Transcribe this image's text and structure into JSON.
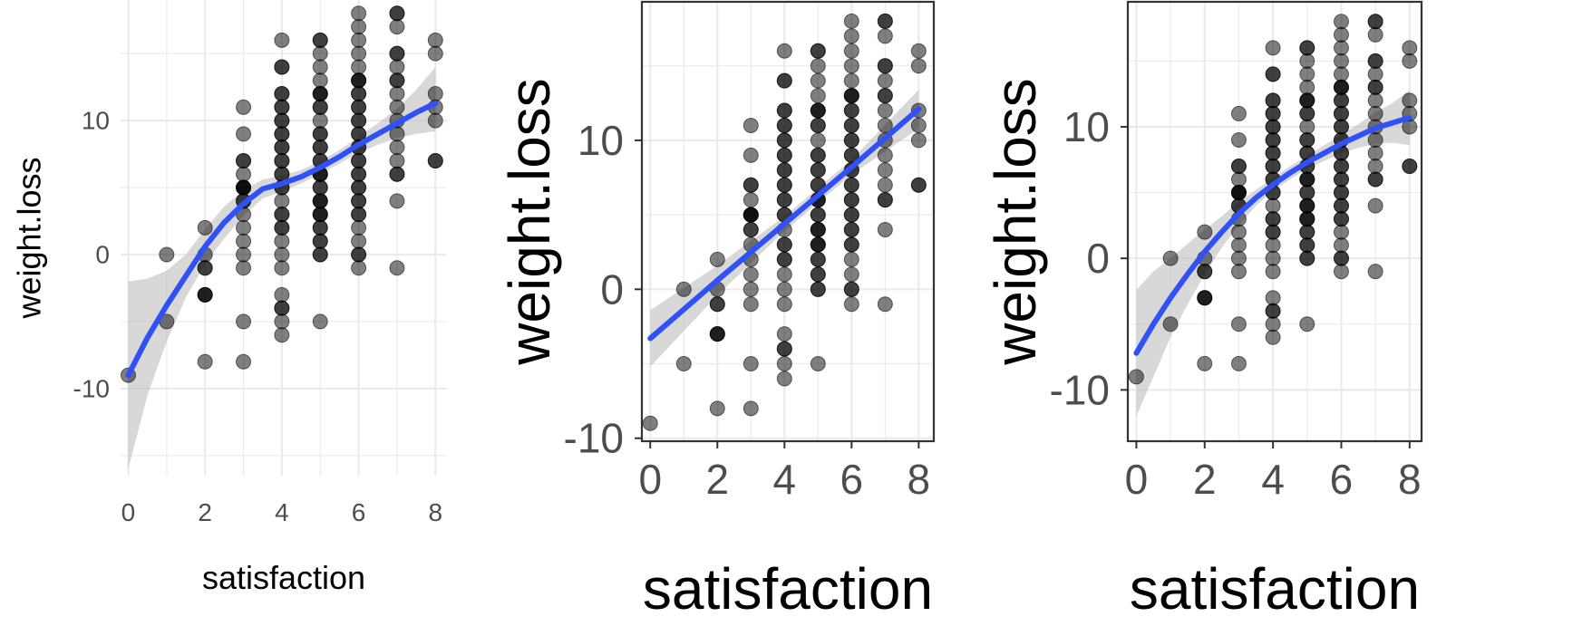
{
  "chart_data": [
    {
      "type": "scatter",
      "panel": "left",
      "theme": "minimal",
      "smoother": "loess",
      "xlabel": "satisfaction",
      "ylabel": "weight.loss",
      "xticks": [
        "0",
        "2",
        "4",
        "6",
        "8"
      ],
      "yticks": [
        "-10",
        "0",
        "10"
      ],
      "xlim": [
        -0.2,
        8.3
      ],
      "ylim": [
        -16.5,
        19
      ],
      "grid": true,
      "panel_border": false,
      "point_color": "#000000",
      "line_color": "#3050F8",
      "band_color": "#BEBEBE",
      "fit": {
        "x": [
          0,
          0.5,
          1,
          1.5,
          2,
          2.5,
          3,
          3.5,
          4,
          4.5,
          5,
          5.5,
          6,
          6.5,
          7,
          7.5,
          8
        ],
        "y": [
          -9,
          -6.2,
          -3.8,
          -1.6,
          0.6,
          2.4,
          3.8,
          4.9,
          5.3,
          5.8,
          6.5,
          7.3,
          8.2,
          9.0,
          9.8,
          10.6,
          11.3
        ],
        "lower": [
          -16,
          -10.5,
          -6.5,
          -3.2,
          -0.7,
          1.2,
          2.9,
          4.2,
          4.7,
          5.3,
          6.0,
          6.8,
          7.6,
          8.2,
          8.7,
          9.0,
          9.2
        ],
        "upper": [
          -2,
          -1.8,
          -1.2,
          0.0,
          1.9,
          3.6,
          4.8,
          5.6,
          5.9,
          6.3,
          7.0,
          7.8,
          8.8,
          9.8,
          10.9,
          12.3,
          14
        ]
      }
    },
    {
      "type": "scatter",
      "panel": "middle",
      "theme": "bw",
      "smoother": "lm",
      "xlabel": "satisfaction",
      "ylabel": "weight.loss",
      "xticks": [
        "0",
        "2",
        "4",
        "6",
        "8"
      ],
      "yticks": [
        "-10",
        "0",
        "10"
      ],
      "xlim": [
        -0.25,
        8.45
      ],
      "ylim": [
        -10.2,
        19.3
      ],
      "grid": true,
      "panel_border": true,
      "point_color": "#000000",
      "line_color": "#3050F8",
      "band_color": "#BEBEBE",
      "fit": {
        "x": [
          0,
          2,
          4,
          6,
          8
        ],
        "y": [
          -3.3,
          0.6,
          4.4,
          8.2,
          12.1
        ],
        "lower": [
          -5.2,
          -0.4,
          3.9,
          7.7,
          10.8
        ],
        "upper": [
          -1.4,
          1.6,
          4.9,
          8.7,
          13.4
        ]
      }
    },
    {
      "type": "scatter",
      "panel": "right",
      "theme": "bw",
      "smoother": "quadratic",
      "xlabel": "satisfaction",
      "ylabel": "weight.loss",
      "xticks": [
        "0",
        "2",
        "4",
        "6",
        "8"
      ],
      "yticks": [
        "-10",
        "0",
        "10"
      ],
      "xlim": [
        -0.25,
        8.35
      ],
      "ylim": [
        -13.9,
        19.5
      ],
      "grid": true,
      "panel_border": true,
      "point_color": "#000000",
      "line_color": "#3050F8",
      "band_color": "#BEBEBE",
      "fit": {
        "x": [
          0,
          0.5,
          1,
          1.5,
          2,
          2.5,
          3,
          3.5,
          4,
          4.5,
          5,
          5.5,
          6,
          6.5,
          7,
          7.5,
          8
        ],
        "y": [
          -7.2,
          -5.0,
          -3.0,
          -1.2,
          0.5,
          2.0,
          3.4,
          4.6,
          5.6,
          6.5,
          7.3,
          8.0,
          8.7,
          9.3,
          9.9,
          10.3,
          10.7
        ],
        "lower": [
          -12,
          -9.0,
          -6.0,
          -3.5,
          -1.2,
          0.8,
          2.5,
          4.0,
          5.1,
          6.0,
          6.8,
          7.4,
          8.0,
          8.4,
          8.7,
          8.8,
          8.6
        ],
        "upper": [
          -2.4,
          -1.0,
          0.0,
          1.1,
          2.2,
          3.2,
          4.3,
          5.2,
          6.1,
          7.0,
          7.8,
          8.6,
          9.4,
          10.2,
          11.1,
          11.8,
          12.8
        ]
      }
    }
  ],
  "scatter_points": {
    "note_units": "satisfaction, weight.loss",
    "x": [
      0,
      1,
      1,
      2,
      2,
      2,
      2,
      2,
      2,
      2,
      2,
      3,
      3,
      3,
      3,
      3,
      3,
      3,
      3,
      3,
      3,
      3,
      3,
      3,
      3,
      3,
      3,
      3,
      3,
      4,
      4,
      4,
      4,
      4,
      4,
      4,
      4,
      4,
      4,
      4,
      4,
      4,
      4,
      4,
      4,
      4,
      4,
      4,
      4,
      4,
      4,
      4,
      4,
      4,
      4,
      4,
      4,
      4,
      4,
      4,
      4,
      5,
      5,
      5,
      5,
      5,
      5,
      5,
      5,
      5,
      5,
      5,
      5,
      5,
      5,
      5,
      5,
      5,
      5,
      5,
      5,
      5,
      5,
      5,
      5,
      5,
      5,
      5,
      5,
      5,
      5,
      5,
      5,
      5,
      5,
      5,
      6,
      6,
      6,
      6,
      6,
      6,
      6,
      6,
      6,
      6,
      6,
      6,
      6,
      6,
      6,
      6,
      6,
      6,
      6,
      6,
      6,
      6,
      6,
      6,
      6,
      6,
      6,
      6,
      6,
      6,
      6,
      6,
      6,
      7,
      7,
      7,
      7,
      7,
      7,
      7,
      7,
      7,
      7,
      7,
      7,
      7,
      7,
      7,
      7,
      7,
      7,
      8,
      8,
      8,
      8,
      8,
      8,
      8
    ],
    "y": [
      -9,
      0,
      -5,
      2,
      0,
      -1,
      -3,
      -3,
      -8,
      -1,
      -3,
      11,
      9,
      7,
      7,
      5,
      5,
      5,
      4,
      3,
      2,
      1,
      0,
      -1,
      -5,
      -8,
      6,
      4,
      5,
      16,
      14,
      14,
      12,
      12,
      11,
      11,
      10,
      9,
      9,
      8,
      7,
      7,
      6,
      6,
      5,
      5,
      4,
      3,
      3,
      2,
      1,
      0,
      -1,
      -3,
      -4,
      -4,
      -5,
      -6,
      10,
      8,
      2,
      16,
      16,
      15,
      14,
      13,
      12,
      12,
      11,
      10,
      9,
      8,
      8,
      7,
      6,
      6,
      5,
      5,
      4,
      4,
      3,
      3,
      3,
      2,
      2,
      1,
      1,
      0,
      -5,
      11,
      7,
      9,
      12,
      4,
      0,
      6,
      18,
      17,
      16,
      15,
      14,
      13,
      13,
      12,
      12,
      11,
      10,
      10,
      9,
      9,
      8,
      7,
      7,
      6,
      5,
      5,
      4,
      4,
      3,
      2,
      1,
      0,
      0,
      -1,
      11,
      6,
      3,
      13,
      8,
      18,
      18,
      17,
      15,
      15,
      14,
      13,
      13,
      12,
      11,
      10,
      9,
      8,
      7,
      6,
      6,
      4,
      -1,
      16,
      15,
      12,
      11,
      10,
      7,
      7
    ]
  }
}
